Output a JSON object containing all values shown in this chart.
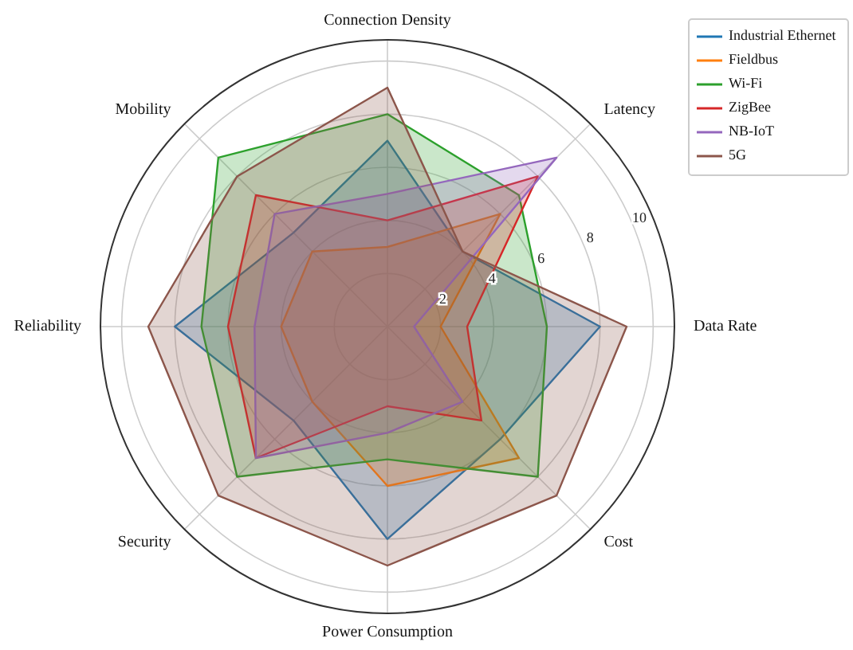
{
  "chart_data": {
    "type": "radar",
    "categories": [
      "Connection Density",
      "Latency",
      "Data Rate",
      "Cost",
      "Power Consumption",
      "Security",
      "Reliability",
      "Mobility"
    ],
    "ylim": [
      0,
      10.8
    ],
    "yticks": [
      2,
      4,
      6,
      8,
      10
    ],
    "grid": true,
    "legend": "top right",
    "series": [
      {
        "name": "Industrial Ethernet",
        "color": "#1f77b4",
        "values": [
          7,
          4,
          8,
          6,
          8,
          5,
          8,
          5
        ]
      },
      {
        "name": "Fieldbus",
        "color": "#ff7f0e",
        "values": [
          3,
          6,
          2,
          7,
          6,
          4,
          4,
          4
        ]
      },
      {
        "name": "Wi-Fi",
        "color": "#2ca02c",
        "values": [
          8,
          7,
          6,
          8,
          5,
          8,
          7,
          9
        ]
      },
      {
        "name": "ZigBee",
        "color": "#d62728",
        "values": [
          4,
          8,
          3,
          5,
          3,
          7,
          6,
          7
        ]
      },
      {
        "name": "NB-IoT",
        "color": "#9467bd",
        "values": [
          5,
          9,
          1,
          4,
          4,
          7,
          5,
          6
        ]
      },
      {
        "name": "5G",
        "color": "#8c564b",
        "values": [
          9,
          4,
          9,
          9,
          9,
          9,
          9,
          8
        ]
      }
    ]
  }
}
